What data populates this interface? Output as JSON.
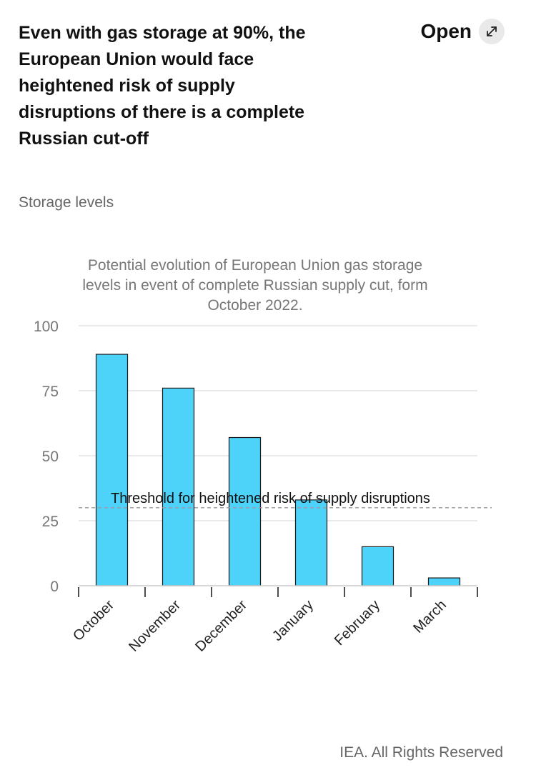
{
  "headline": "Even with gas storage at 90%, the European Union would face heightened risk of supply disruptions of there is a complete Russian cut-off",
  "open_button": {
    "label": "Open",
    "icon": "external-arrow-icon"
  },
  "section_label": "Storage levels",
  "footer": "IEA. All Rights Reserved",
  "colors": {
    "bar": "#4dd2fa",
    "bar_stroke": "#1a1a1a",
    "grid": "#e3e3e3",
    "threshold": "#999999"
  },
  "chart_data": {
    "type": "bar",
    "title_lines": [
      "Potential evolution of European Union gas storage",
      "levels in event of complete Russian supply cut, form",
      "October 2022."
    ],
    "categories": [
      "October",
      "November",
      "December",
      "January",
      "February",
      "March"
    ],
    "values": [
      89,
      76,
      57,
      33,
      15,
      3
    ],
    "ylim": [
      0,
      100
    ],
    "yticks": [
      0,
      25,
      50,
      75,
      100
    ],
    "grid": true,
    "threshold": {
      "value": 30,
      "label": "Threshold for heightened risk of supply disruptions"
    }
  }
}
